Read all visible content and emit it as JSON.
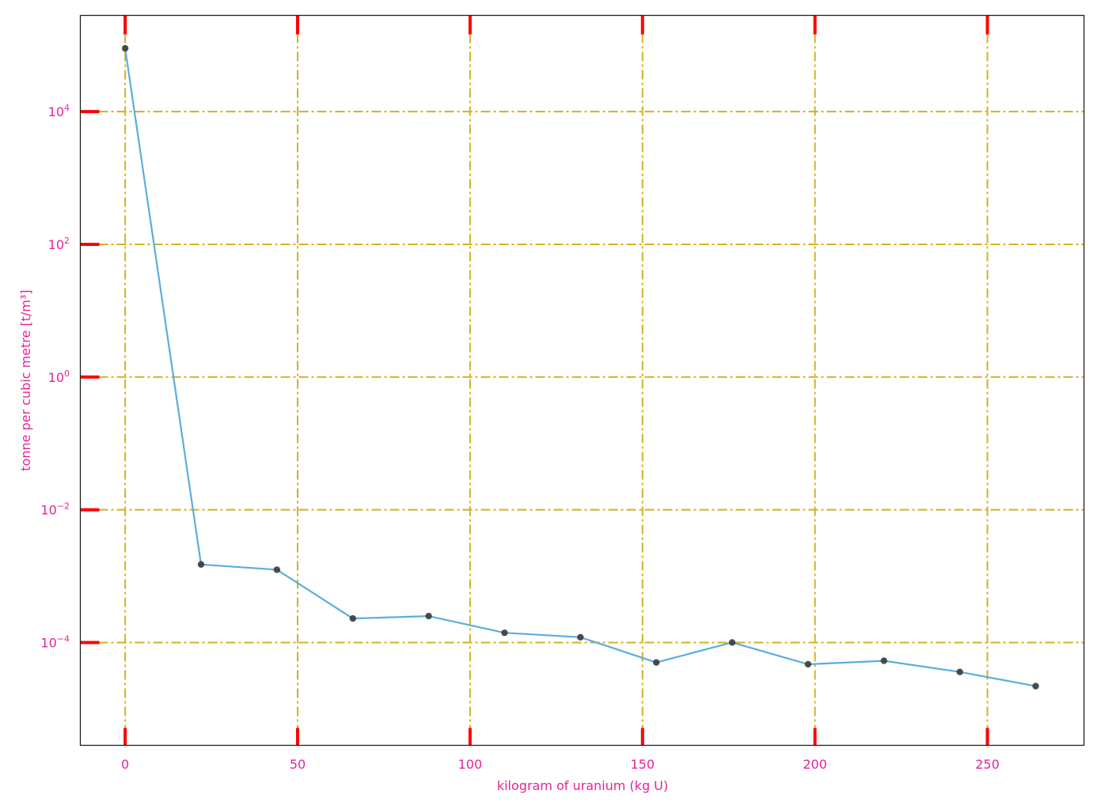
{
  "chart_data": {
    "type": "line",
    "xlabel": "kilogram of uranium (kg U)",
    "ylabel": "tonne per cubic metre [t/m³]",
    "xlim": [
      -13,
      278
    ],
    "ylim_log10": [
      -5.55,
      5.45
    ],
    "y_scale": "log",
    "x_ticks": [
      0,
      50,
      100,
      150,
      200,
      250
    ],
    "y_ticks": [
      {
        "exp": 4,
        "base": "10",
        "sup": "4"
      },
      {
        "exp": 2,
        "base": "10",
        "sup": "2"
      },
      {
        "exp": 0,
        "base": "10",
        "sup": "0"
      },
      {
        "exp": -2,
        "base": "10",
        "sup": "−2"
      },
      {
        "exp": -4,
        "base": "10",
        "sup": "−4"
      }
    ],
    "grid": true,
    "series": [
      {
        "x": [
          0,
          22,
          44,
          66,
          88,
          110,
          132,
          154,
          176,
          198,
          220,
          242,
          264
        ],
        "y": [
          90000,
          0.0015,
          0.00125,
          0.00023,
          0.00025,
          0.00014,
          0.00012,
          5e-05,
          0.0001,
          4.7e-05,
          5.3e-05,
          3.6e-05,
          2.2e-05
        ]
      }
    ],
    "colors": {
      "line": "#5aaedc",
      "marker": "#3a3a3a",
      "grid": "#d4b020",
      "tick_mark": "#ff0000",
      "text": "#e6239a",
      "frame": "#222222"
    }
  }
}
